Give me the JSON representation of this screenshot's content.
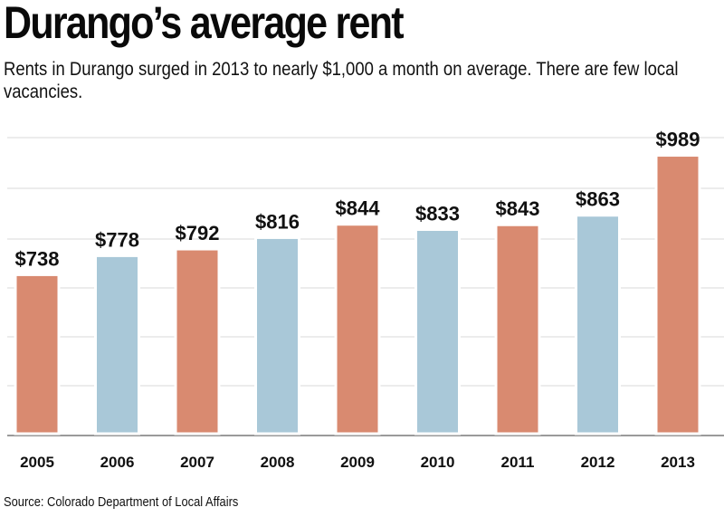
{
  "title": "Durango’s average rent",
  "subtitle": "Rents in Durango surged in 2013 to nearly $1,000 a month on average. There are few local vacancies.",
  "source": "Source: Colorado Department of Local Affairs",
  "colors": {
    "orange": "#d98a70",
    "blue": "#a9c8d8",
    "grid": "#d8d8d8"
  },
  "chart_data": {
    "type": "bar",
    "categories": [
      "2005",
      "2006",
      "2007",
      "2008",
      "2009",
      "2010",
      "2011",
      "2012",
      "2013"
    ],
    "values": [
      738,
      778,
      792,
      816,
      844,
      833,
      843,
      863,
      989
    ],
    "data_labels": [
      "$738",
      "$778",
      "$792",
      "$816",
      "$844",
      "$833",
      "$843",
      "$863",
      "$989"
    ],
    "bar_colors": [
      "orange",
      "blue",
      "orange",
      "blue",
      "orange",
      "blue",
      "orange",
      "blue",
      "orange"
    ],
    "ylim": [
      400,
      1030
    ],
    "grid": true,
    "title": "Durango’s average rent",
    "xlabel": "",
    "ylabel": ""
  }
}
